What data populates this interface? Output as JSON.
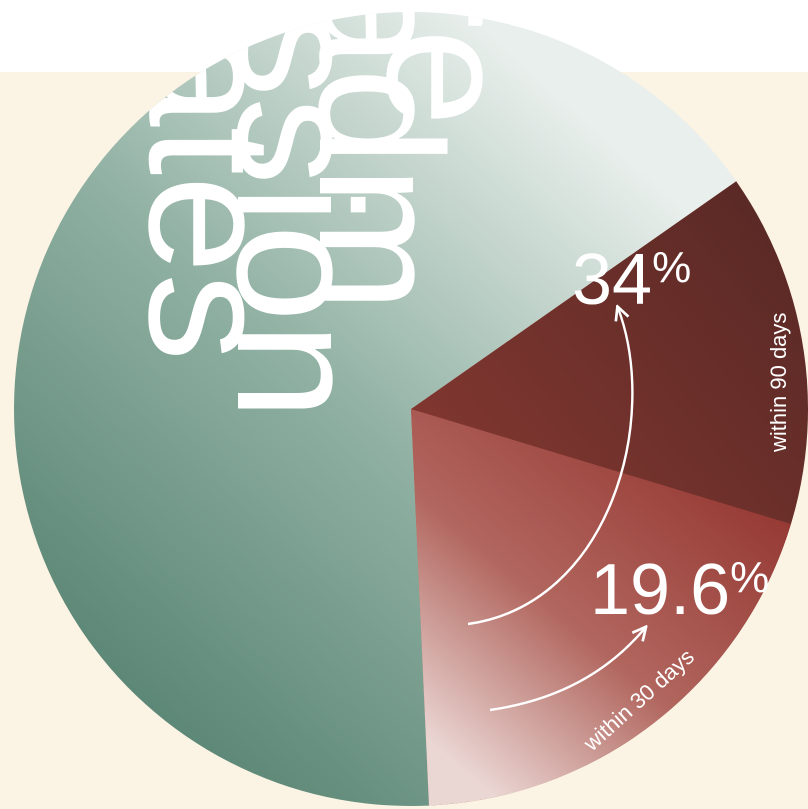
{
  "chart_data": {
    "type": "pie",
    "title_words": [
      "re",
      "adm",
      "ission",
      "rates"
    ],
    "slices": [
      {
        "label": "within 90 days",
        "value_label": "34%",
        "value": 34
      },
      {
        "label": "within 30 days",
        "value_label": "19.6%",
        "value": 19.6
      }
    ],
    "colors": {
      "background_band": "#fbf3e3",
      "rest_slice_dark": "#4d7a68",
      "rest_slice_light": "#e9efec",
      "slice_90_dark": "#5c2a26",
      "slice_90_mid": "#8c3b33",
      "slice_30_dark": "#9a3a35",
      "slice_30_light": "#f2e3e1"
    }
  }
}
